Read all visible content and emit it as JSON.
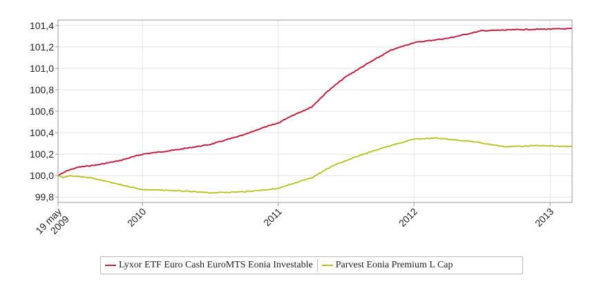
{
  "chart_data": {
    "type": "line",
    "title": "",
    "xlabel": "",
    "ylabel": "",
    "xlim": [
      "2009-05-19",
      "2013-03-01"
    ],
    "ylim": [
      99.75,
      101.45
    ],
    "y_ticks": [
      "101,4",
      "101,2",
      "101,0",
      "100,8",
      "100,6",
      "100,4",
      "100,2",
      "100,0",
      "99,8"
    ],
    "x_ticks": [
      {
        "label": "19 may\n2009",
        "date": "2009-05-19"
      },
      {
        "label": "2010",
        "date": "2010-01-01"
      },
      {
        "label": "2011",
        "date": "2011-01-01"
      },
      {
        "label": "2012",
        "date": "2012-01-01"
      },
      {
        "label": "2013",
        "date": "2013-01-01"
      }
    ],
    "grid": true,
    "legend_position": "bottom",
    "series": [
      {
        "name": "Lyxor ETF Euro Cash EuroMTS Eonia Investable",
        "color": "#c0203f",
        "points": [
          [
            "2009-05-19",
            100.0
          ],
          [
            "2009-06-15",
            100.05
          ],
          [
            "2009-07-15",
            100.08
          ],
          [
            "2009-09-01",
            100.1
          ],
          [
            "2009-11-01",
            100.14
          ],
          [
            "2010-01-01",
            100.2
          ],
          [
            "2010-04-01",
            100.24
          ],
          [
            "2010-07-01",
            100.29
          ],
          [
            "2010-10-01",
            100.38
          ],
          [
            "2010-11-15",
            100.44
          ],
          [
            "2011-01-01",
            100.49
          ],
          [
            "2011-02-01",
            100.55
          ],
          [
            "2011-04-01",
            100.64
          ],
          [
            "2011-05-15",
            100.79
          ],
          [
            "2011-07-01",
            100.92
          ],
          [
            "2011-09-01",
            101.05
          ],
          [
            "2011-11-01",
            101.17
          ],
          [
            "2012-01-01",
            101.24
          ],
          [
            "2012-04-01",
            101.28
          ],
          [
            "2012-07-01",
            101.35
          ],
          [
            "2012-10-01",
            101.36
          ],
          [
            "2013-03-01",
            101.37
          ]
        ]
      },
      {
        "name": "Parvest Eonia Premium L Cap",
        "color": "#b5c21e",
        "points": [
          [
            "2009-05-19",
            100.0
          ],
          [
            "2009-06-01",
            99.98
          ],
          [
            "2009-06-20",
            100.0
          ],
          [
            "2009-08-15",
            99.98
          ],
          [
            "2009-10-15",
            99.93
          ],
          [
            "2010-01-01",
            99.87
          ],
          [
            "2010-04-01",
            99.86
          ],
          [
            "2010-07-01",
            99.84
          ],
          [
            "2010-10-01",
            99.85
          ],
          [
            "2011-01-01",
            99.88
          ],
          [
            "2011-04-01",
            99.98
          ],
          [
            "2011-06-01",
            100.1
          ],
          [
            "2011-08-01",
            100.18
          ],
          [
            "2011-10-01",
            100.25
          ],
          [
            "2012-01-01",
            100.34
          ],
          [
            "2012-03-01",
            100.35
          ],
          [
            "2012-06-01",
            100.32
          ],
          [
            "2012-09-01",
            100.27
          ],
          [
            "2012-12-01",
            100.28
          ],
          [
            "2013-03-01",
            100.27
          ]
        ]
      }
    ]
  }
}
